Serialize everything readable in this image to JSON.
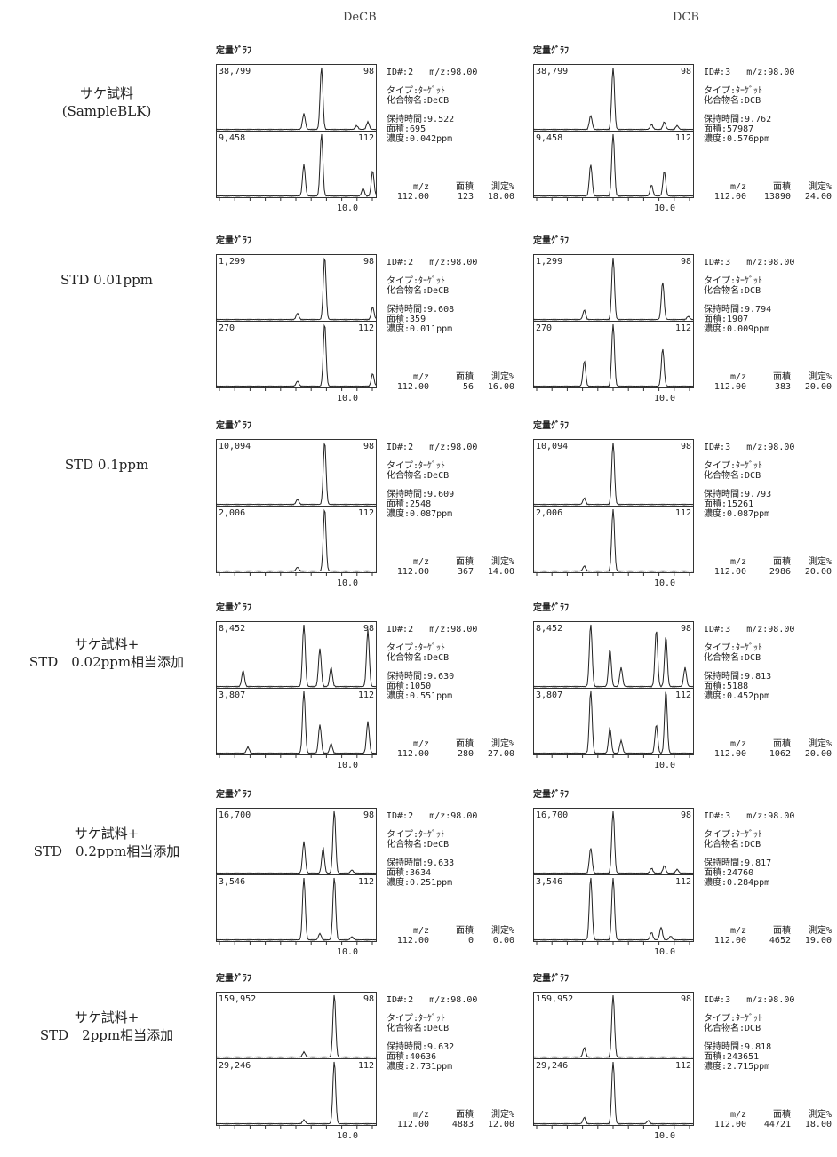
{
  "columns": [
    "DeCB",
    "DCB"
  ],
  "graph_title": "定量ｸﾞﾗﾌ",
  "labels": {
    "id_prefix": "ID#:",
    "mz_prefix": "m/z:",
    "type_line": "タイプ:ﾀｰｹﾞｯﾄ",
    "compound_prefix": "化合物名:",
    "rt_prefix": "保持時間:",
    "area_prefix": "面積:",
    "conc_prefix": "濃度:",
    "foot_mz": "m/z",
    "foot_area": "面積",
    "foot_pct": "測定%",
    "xtick": "10.0"
  },
  "rows": [
    {
      "label_lines": [
        "サケ試料",
        "(SampleBLK)"
      ],
      "panels": [
        {
          "id": "2",
          "mz": "98.00",
          "compound": "DeCB",
          "rt": "9.522",
          "area": "695",
          "conc": "0.042ppm",
          "top_max": "38,799",
          "top_mz": "98",
          "bot_max": "9,458",
          "bot_mz": "112",
          "foot_mz": "112.00",
          "foot_area": "123",
          "foot_pct": "18.00"
        },
        {
          "id": "3",
          "mz": "98.00",
          "compound": "DCB",
          "rt": "9.762",
          "area": "57987",
          "conc": "0.576ppm",
          "top_max": "38,799",
          "top_mz": "98",
          "bot_max": "9,458",
          "bot_mz": "112",
          "foot_mz": "112.00",
          "foot_area": "13890",
          "foot_pct": "24.00"
        }
      ]
    },
    {
      "label_lines": [
        "STD 0.01ppm"
      ],
      "panels": [
        {
          "id": "2",
          "mz": "98.00",
          "compound": "DeCB",
          "rt": "9.608",
          "area": "359",
          "conc": "0.011ppm",
          "top_max": "1,299",
          "top_mz": "98",
          "bot_max": "270",
          "bot_mz": "112",
          "foot_mz": "112.00",
          "foot_area": "56",
          "foot_pct": "16.00"
        },
        {
          "id": "3",
          "mz": "98.00",
          "compound": "DCB",
          "rt": "9.794",
          "area": "1907",
          "conc": "0.009ppm",
          "top_max": "1,299",
          "top_mz": "98",
          "bot_max": "270",
          "bot_mz": "112",
          "foot_mz": "112.00",
          "foot_area": "383",
          "foot_pct": "20.00"
        }
      ]
    },
    {
      "label_lines": [
        "STD 0.1ppm"
      ],
      "panels": [
        {
          "id": "2",
          "mz": "98.00",
          "compound": "DeCB",
          "rt": "9.609",
          "area": "2548",
          "conc": "0.087ppm",
          "top_max": "10,094",
          "top_mz": "98",
          "bot_max": "2,006",
          "bot_mz": "112",
          "foot_mz": "112.00",
          "foot_area": "367",
          "foot_pct": "14.00"
        },
        {
          "id": "3",
          "mz": "98.00",
          "compound": "DCB",
          "rt": "9.793",
          "area": "15261",
          "conc": "0.087ppm",
          "top_max": "10,094",
          "top_mz": "98",
          "bot_max": "2,006",
          "bot_mz": "112",
          "foot_mz": "112.00",
          "foot_area": "2986",
          "foot_pct": "20.00"
        }
      ]
    },
    {
      "label_lines": [
        "サケ試料+",
        "STD　0.02ppm相当添加"
      ],
      "panels": [
        {
          "id": "2",
          "mz": "98.00",
          "compound": "DeCB",
          "rt": "9.630",
          "area": "1050",
          "conc": "0.551ppm",
          "top_max": "8,452",
          "top_mz": "98",
          "bot_max": "3,807",
          "bot_mz": "112",
          "foot_mz": "112.00",
          "foot_area": "280",
          "foot_pct": "27.00"
        },
        {
          "id": "3",
          "mz": "98.00",
          "compound": "DCB",
          "rt": "9.813",
          "area": "5188",
          "conc": "0.452ppm",
          "top_max": "8,452",
          "top_mz": "98",
          "bot_max": "3,807",
          "bot_mz": "112",
          "foot_mz": "112.00",
          "foot_area": "1062",
          "foot_pct": "20.00"
        }
      ]
    },
    {
      "label_lines": [
        "サケ試料+",
        "STD　0.2ppm相当添加"
      ],
      "panels": [
        {
          "id": "2",
          "mz": "98.00",
          "compound": "DeCB",
          "rt": "9.633",
          "area": "3634",
          "conc": "0.251ppm",
          "top_max": "16,700",
          "top_mz": "98",
          "bot_max": "3,546",
          "bot_mz": "112",
          "foot_mz": "112.00",
          "foot_area": "0",
          "foot_pct": "0.00"
        },
        {
          "id": "3",
          "mz": "98.00",
          "compound": "DCB",
          "rt": "9.817",
          "area": "24760",
          "conc": "0.284ppm",
          "top_max": "16,700",
          "top_mz": "98",
          "bot_max": "3,546",
          "bot_mz": "112",
          "foot_mz": "112.00",
          "foot_area": "4652",
          "foot_pct": "19.00"
        }
      ]
    },
    {
      "label_lines": [
        "サケ試料+",
        "STD　2ppm相当添加"
      ],
      "panels": [
        {
          "id": "2",
          "mz": "98.00",
          "compound": "DeCB",
          "rt": "9.632",
          "area": "40636",
          "conc": "2.731ppm",
          "top_max": "159,952",
          "top_mz": "98",
          "bot_max": "29,246",
          "bot_mz": "112",
          "foot_mz": "112.00",
          "foot_area": "4883",
          "foot_pct": "12.00"
        },
        {
          "id": "3",
          "mz": "98.00",
          "compound": "DCB",
          "rt": "9.818",
          "area": "243651",
          "conc": "2.715ppm",
          "top_max": "159,952",
          "top_mz": "98",
          "bot_max": "29,246",
          "bot_mz": "112",
          "foot_mz": "112.00",
          "foot_area": "44721",
          "foot_pct": "18.00"
        }
      ]
    }
  ],
  "chart_data": {
    "type": "line",
    "title": "",
    "xlabel": "",
    "ylabel": "",
    "x_ticks": [
      "10.0"
    ],
    "series": [],
    "panels": [
      {
        "row": "サケ試料(SampleBLK)",
        "column": "DeCB",
        "traces": [
          {
            "mz": "98",
            "max": 38799,
            "peaks": [
              [
                0.55,
                0.25
              ],
              [
                0.66,
                1.0
              ],
              [
                0.88,
                0.06
              ],
              [
                0.95,
                0.12
              ]
            ]
          },
          {
            "mz": "112",
            "max": 9458,
            "peaks": [
              [
                0.55,
                0.5
              ],
              [
                0.66,
                1.0
              ],
              [
                0.92,
                0.12
              ],
              [
                0.98,
                0.4
              ]
            ]
          }
        ]
      },
      {
        "row": "サケ試料(SampleBLK)",
        "column": "DCB",
        "traces": [
          {
            "mz": "98",
            "max": 38799,
            "peaks": [
              [
                0.36,
                0.22
              ],
              [
                0.5,
                1.0
              ],
              [
                0.74,
                0.08
              ],
              [
                0.82,
                0.12
              ],
              [
                0.9,
                0.06
              ]
            ]
          },
          {
            "mz": "112",
            "max": 9458,
            "peaks": [
              [
                0.36,
                0.5
              ],
              [
                0.5,
                1.0
              ],
              [
                0.74,
                0.18
              ],
              [
                0.82,
                0.4
              ]
            ]
          }
        ]
      },
      {
        "row": "STD 0.01ppm",
        "column": "DeCB",
        "traces": [
          {
            "mz": "98",
            "max": 1299,
            "peaks": [
              [
                0.51,
                0.1
              ],
              [
                0.68,
                1.0
              ],
              [
                0.98,
                0.2
              ]
            ]
          },
          {
            "mz": "112",
            "max": 270,
            "peaks": [
              [
                0.51,
                0.08
              ],
              [
                0.68,
                1.0
              ],
              [
                0.98,
                0.2
              ]
            ]
          }
        ]
      },
      {
        "row": "STD 0.01ppm",
        "column": "DCB",
        "traces": [
          {
            "mz": "98",
            "max": 1299,
            "peaks": [
              [
                0.32,
                0.15
              ],
              [
                0.5,
                1.0
              ],
              [
                0.81,
                0.6
              ],
              [
                0.97,
                0.05
              ]
            ]
          },
          {
            "mz": "112",
            "max": 270,
            "peaks": [
              [
                0.32,
                0.4
              ],
              [
                0.5,
                1.0
              ],
              [
                0.81,
                0.6
              ]
            ]
          }
        ]
      },
      {
        "row": "STD 0.1ppm",
        "column": "DeCB",
        "traces": [
          {
            "mz": "98",
            "max": 10094,
            "peaks": [
              [
                0.51,
                0.08
              ],
              [
                0.68,
                1.0
              ]
            ]
          },
          {
            "mz": "112",
            "max": 2006,
            "peaks": [
              [
                0.51,
                0.06
              ],
              [
                0.68,
                1.0
              ]
            ]
          }
        ]
      },
      {
        "row": "STD 0.1ppm",
        "column": "DCB",
        "traces": [
          {
            "mz": "98",
            "max": 10094,
            "peaks": [
              [
                0.32,
                0.1
              ],
              [
                0.5,
                1.0
              ]
            ]
          },
          {
            "mz": "112",
            "max": 2006,
            "peaks": [
              [
                0.32,
                0.08
              ],
              [
                0.5,
                1.0
              ]
            ]
          }
        ]
      },
      {
        "row": "サケ試料+STD 0.02ppm相当添加",
        "column": "DeCB",
        "traces": [
          {
            "mz": "98",
            "max": 8452,
            "peaks": [
              [
                0.17,
                0.25
              ],
              [
                0.55,
                1.0
              ],
              [
                0.65,
                0.6
              ],
              [
                0.72,
                0.3
              ],
              [
                0.95,
                0.9
              ]
            ]
          },
          {
            "mz": "112",
            "max": 3807,
            "peaks": [
              [
                0.2,
                0.1
              ],
              [
                0.55,
                1.0
              ],
              [
                0.65,
                0.45
              ],
              [
                0.72,
                0.15
              ],
              [
                0.95,
                0.5
              ]
            ]
          }
        ]
      },
      {
        "row": "サケ試料+STD 0.02ppm相当添加",
        "column": "DCB",
        "traces": [
          {
            "mz": "98",
            "max": 8452,
            "peaks": [
              [
                0.36,
                1.0
              ],
              [
                0.48,
                0.6
              ],
              [
                0.55,
                0.3
              ],
              [
                0.77,
                0.9
              ],
              [
                0.83,
                0.8
              ],
              [
                0.95,
                0.3
              ]
            ]
          },
          {
            "mz": "112",
            "max": 3807,
            "peaks": [
              [
                0.36,
                1.0
              ],
              [
                0.48,
                0.4
              ],
              [
                0.55,
                0.2
              ],
              [
                0.77,
                0.45
              ],
              [
                0.83,
                1.0
              ]
            ]
          }
        ]
      },
      {
        "row": "サケ試料+STD 0.2ppm相当添加",
        "column": "DeCB",
        "traces": [
          {
            "mz": "98",
            "max": 16700,
            "peaks": [
              [
                0.55,
                0.5
              ],
              [
                0.67,
                0.4
              ],
              [
                0.74,
                1.0
              ],
              [
                0.85,
                0.05
              ]
            ]
          },
          {
            "mz": "112",
            "max": 3546,
            "peaks": [
              [
                0.55,
                1.0
              ],
              [
                0.65,
                0.1
              ],
              [
                0.74,
                1.0
              ],
              [
                0.85,
                0.05
              ]
            ]
          }
        ]
      },
      {
        "row": "サケ試料+STD 0.2ppm相当添加",
        "column": "DCB",
        "traces": [
          {
            "mz": "98",
            "max": 16700,
            "peaks": [
              [
                0.36,
                0.4
              ],
              [
                0.5,
                1.0
              ],
              [
                0.74,
                0.08
              ],
              [
                0.82,
                0.12
              ],
              [
                0.9,
                0.06
              ]
            ]
          },
          {
            "mz": "112",
            "max": 3546,
            "peaks": [
              [
                0.36,
                1.0
              ],
              [
                0.5,
                1.0
              ],
              [
                0.74,
                0.12
              ],
              [
                0.8,
                0.2
              ],
              [
                0.86,
                0.06
              ]
            ]
          }
        ]
      },
      {
        "row": "サケ試料+STD 2ppm相当添加",
        "column": "DeCB",
        "traces": [
          {
            "mz": "98",
            "max": 159952,
            "peaks": [
              [
                0.55,
                0.08
              ],
              [
                0.74,
                1.0
              ]
            ]
          },
          {
            "mz": "112",
            "max": 29246,
            "peaks": [
              [
                0.55,
                0.06
              ],
              [
                0.74,
                1.0
              ]
            ]
          }
        ]
      },
      {
        "row": "サケ試料+STD 2ppm相当添加",
        "column": "DCB",
        "traces": [
          {
            "mz": "98",
            "max": 159952,
            "peaks": [
              [
                0.32,
                0.15
              ],
              [
                0.5,
                1.0
              ]
            ]
          },
          {
            "mz": "112",
            "max": 29246,
            "peaks": [
              [
                0.32,
                0.1
              ],
              [
                0.5,
                1.0
              ],
              [
                0.72,
                0.05
              ]
            ]
          }
        ]
      }
    ]
  }
}
